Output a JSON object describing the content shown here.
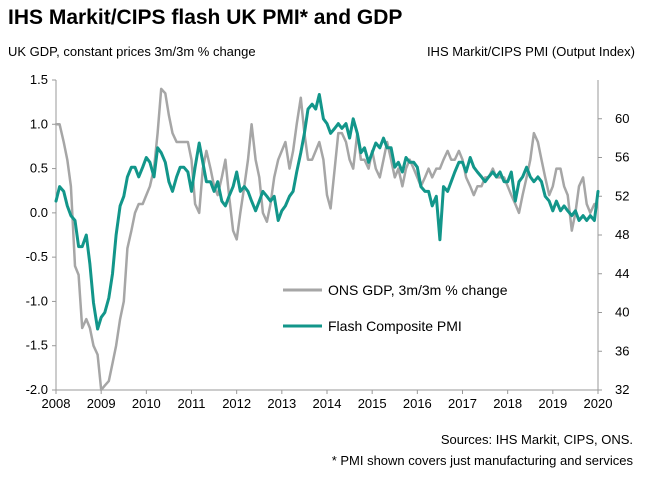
{
  "chart_data": {
    "type": "line",
    "title": "IHS Markit/CIPS flash UK PMI* and GDP",
    "ylabel_left": "UK GDP, constant prices 3m/3m % change",
    "ylabel_right": "IHS Markit/CIPS PMI (Output Index)",
    "xlim": [
      2008,
      2020
    ],
    "ylim_left": [
      -2.0,
      1.5
    ],
    "ylim_right": [
      32,
      64
    ],
    "x_ticks": [
      "2008",
      "2009",
      "2010",
      "2011",
      "2012",
      "2013",
      "2014",
      "2015",
      "2016",
      "2017",
      "2018",
      "2019",
      "2020"
    ],
    "y_ticks_left": [
      "1.5",
      "1.0",
      "0.5",
      "0.0",
      "-0.5",
      "-1.0",
      "-1.5",
      "-2.0"
    ],
    "y_ticks_right": [
      "60",
      "56",
      "52",
      "48",
      "44",
      "40",
      "36",
      "32"
    ],
    "legend_position": "center-right",
    "grid": false,
    "series": [
      {
        "name": "ONS GDP, 3m/3m % change",
        "axis": "left",
        "color": "#a6a6a6",
        "points": [
          [
            2008.0,
            1.0
          ],
          [
            2008.08,
            1.0
          ],
          [
            2008.17,
            0.8
          ],
          [
            2008.25,
            0.6
          ],
          [
            2008.33,
            0.3
          ],
          [
            2008.42,
            -0.6
          ],
          [
            2008.5,
            -0.7
          ],
          [
            2008.58,
            -1.3
          ],
          [
            2008.67,
            -1.2
          ],
          [
            2008.75,
            -1.3
          ],
          [
            2008.83,
            -1.5
          ],
          [
            2008.92,
            -1.6
          ],
          [
            2009.0,
            -2.0
          ],
          [
            2009.08,
            -1.95
          ],
          [
            2009.17,
            -1.9
          ],
          [
            2009.25,
            -1.7
          ],
          [
            2009.33,
            -1.5
          ],
          [
            2009.42,
            -1.2
          ],
          [
            2009.5,
            -1.0
          ],
          [
            2009.58,
            -0.4
          ],
          [
            2009.67,
            -0.2
          ],
          [
            2009.75,
            0.0
          ],
          [
            2009.83,
            0.1
          ],
          [
            2009.92,
            0.1
          ],
          [
            2010.0,
            0.2
          ],
          [
            2010.08,
            0.3
          ],
          [
            2010.17,
            0.5
          ],
          [
            2010.25,
            0.9
          ],
          [
            2010.33,
            1.4
          ],
          [
            2010.42,
            1.35
          ],
          [
            2010.5,
            1.1
          ],
          [
            2010.58,
            0.9
          ],
          [
            2010.67,
            0.8
          ],
          [
            2010.75,
            0.8
          ],
          [
            2010.83,
            0.8
          ],
          [
            2010.92,
            0.8
          ],
          [
            2011.0,
            0.6
          ],
          [
            2011.08,
            0.1
          ],
          [
            2011.17,
            0.0
          ],
          [
            2011.25,
            0.5
          ],
          [
            2011.33,
            0.7
          ],
          [
            2011.42,
            0.5
          ],
          [
            2011.5,
            0.3
          ],
          [
            2011.58,
            0.2
          ],
          [
            2011.67,
            0.4
          ],
          [
            2011.75,
            0.6
          ],
          [
            2011.83,
            0.2
          ],
          [
            2011.92,
            -0.2
          ],
          [
            2012.0,
            -0.3
          ],
          [
            2012.08,
            0.0
          ],
          [
            2012.17,
            0.3
          ],
          [
            2012.25,
            0.6
          ],
          [
            2012.33,
            1.0
          ],
          [
            2012.42,
            0.6
          ],
          [
            2012.5,
            0.4
          ],
          [
            2012.58,
            0.0
          ],
          [
            2012.67,
            -0.1
          ],
          [
            2012.75,
            0.1
          ],
          [
            2012.83,
            0.4
          ],
          [
            2012.92,
            0.6
          ],
          [
            2013.0,
            0.7
          ],
          [
            2013.08,
            0.8
          ],
          [
            2013.17,
            0.5
          ],
          [
            2013.25,
            0.7
          ],
          [
            2013.33,
            1.0
          ],
          [
            2013.42,
            1.3
          ],
          [
            2013.5,
            0.9
          ],
          [
            2013.58,
            0.6
          ],
          [
            2013.67,
            0.6
          ],
          [
            2013.75,
            0.7
          ],
          [
            2013.83,
            0.8
          ],
          [
            2013.92,
            0.6
          ],
          [
            2014.0,
            0.2
          ],
          [
            2014.08,
            0.05
          ],
          [
            2014.17,
            0.5
          ],
          [
            2014.25,
            0.9
          ],
          [
            2014.33,
            0.9
          ],
          [
            2014.42,
            0.8
          ],
          [
            2014.5,
            0.6
          ],
          [
            2014.58,
            0.5
          ],
          [
            2014.67,
            0.9
          ],
          [
            2014.75,
            0.6
          ],
          [
            2014.83,
            0.6
          ],
          [
            2014.92,
            0.5
          ],
          [
            2015.0,
            0.7
          ],
          [
            2015.08,
            0.5
          ],
          [
            2015.17,
            0.4
          ],
          [
            2015.25,
            0.6
          ],
          [
            2015.33,
            0.8
          ],
          [
            2015.42,
            0.6
          ],
          [
            2015.5,
            0.4
          ],
          [
            2015.58,
            0.5
          ],
          [
            2015.67,
            0.3
          ],
          [
            2015.75,
            0.5
          ],
          [
            2015.83,
            0.6
          ],
          [
            2015.92,
            0.5
          ],
          [
            2016.0,
            0.4
          ],
          [
            2016.08,
            0.3
          ],
          [
            2016.17,
            0.4
          ],
          [
            2016.25,
            0.5
          ],
          [
            2016.33,
            0.4
          ],
          [
            2016.42,
            0.5
          ],
          [
            2016.5,
            0.5
          ],
          [
            2016.58,
            0.6
          ],
          [
            2016.67,
            0.7
          ],
          [
            2016.75,
            0.6
          ],
          [
            2016.83,
            0.6
          ],
          [
            2016.92,
            0.7
          ],
          [
            2017.0,
            0.6
          ],
          [
            2017.08,
            0.4
          ],
          [
            2017.17,
            0.3
          ],
          [
            2017.25,
            0.2
          ],
          [
            2017.33,
            0.3
          ],
          [
            2017.42,
            0.3
          ],
          [
            2017.5,
            0.4
          ],
          [
            2017.58,
            0.4
          ],
          [
            2017.67,
            0.5
          ],
          [
            2017.75,
            0.4
          ],
          [
            2017.83,
            0.4
          ],
          [
            2017.92,
            0.4
          ],
          [
            2018.0,
            0.3
          ],
          [
            2018.08,
            0.2
          ],
          [
            2018.17,
            0.1
          ],
          [
            2018.25,
            0.0
          ],
          [
            2018.33,
            0.2
          ],
          [
            2018.42,
            0.4
          ],
          [
            2018.5,
            0.6
          ],
          [
            2018.58,
            0.9
          ],
          [
            2018.67,
            0.8
          ],
          [
            2018.75,
            0.6
          ],
          [
            2018.83,
            0.4
          ],
          [
            2018.92,
            0.2
          ],
          [
            2019.0,
            0.3
          ],
          [
            2019.08,
            0.5
          ],
          [
            2019.17,
            0.5
          ],
          [
            2019.25,
            0.3
          ],
          [
            2019.33,
            0.2
          ],
          [
            2019.42,
            -0.2
          ],
          [
            2019.5,
            0.0
          ],
          [
            2019.58,
            0.3
          ],
          [
            2019.67,
            0.4
          ],
          [
            2019.75,
            0.1
          ],
          [
            2019.83,
            0.0
          ],
          [
            2019.92,
            0.1
          ]
        ]
      },
      {
        "name": "Flash Composite PMI",
        "axis": "right",
        "color": "#12968a",
        "points": [
          [
            2008.0,
            51.5
          ],
          [
            2008.08,
            53.0
          ],
          [
            2008.17,
            52.5
          ],
          [
            2008.25,
            51.0
          ],
          [
            2008.33,
            50.0
          ],
          [
            2008.42,
            49.5
          ],
          [
            2008.5,
            46.8
          ],
          [
            2008.58,
            46.8
          ],
          [
            2008.67,
            48.0
          ],
          [
            2008.75,
            45.0
          ],
          [
            2008.83,
            41.0
          ],
          [
            2008.92,
            38.3
          ],
          [
            2009.0,
            39.5
          ],
          [
            2009.08,
            40.0
          ],
          [
            2009.17,
            41.5
          ],
          [
            2009.25,
            44.0
          ],
          [
            2009.33,
            48.0
          ],
          [
            2009.42,
            51.0
          ],
          [
            2009.5,
            52.0
          ],
          [
            2009.58,
            54.0
          ],
          [
            2009.67,
            55.0
          ],
          [
            2009.75,
            55.0
          ],
          [
            2009.83,
            54.0
          ],
          [
            2009.92,
            55.0
          ],
          [
            2010.0,
            56.0
          ],
          [
            2010.08,
            55.5
          ],
          [
            2010.17,
            54.0
          ],
          [
            2010.25,
            57.0
          ],
          [
            2010.33,
            56.5
          ],
          [
            2010.42,
            55.5
          ],
          [
            2010.5,
            53.5
          ],
          [
            2010.58,
            52.5
          ],
          [
            2010.67,
            54.0
          ],
          [
            2010.75,
            55.0
          ],
          [
            2010.83,
            55.0
          ],
          [
            2010.92,
            54.5
          ],
          [
            2011.0,
            52.5
          ],
          [
            2011.08,
            55.0
          ],
          [
            2011.17,
            57.5
          ],
          [
            2011.25,
            55.5
          ],
          [
            2011.33,
            53.5
          ],
          [
            2011.42,
            53.5
          ],
          [
            2011.5,
            52.5
          ],
          [
            2011.58,
            53.5
          ],
          [
            2011.67,
            51.5
          ],
          [
            2011.75,
            51.0
          ],
          [
            2011.83,
            52.0
          ],
          [
            2011.92,
            53.0
          ],
          [
            2012.0,
            54.5
          ],
          [
            2012.08,
            52.5
          ],
          [
            2012.17,
            53.0
          ],
          [
            2012.25,
            52.5
          ],
          [
            2012.33,
            51.5
          ],
          [
            2012.42,
            50.5
          ],
          [
            2012.5,
            51.5
          ],
          [
            2012.58,
            52.5
          ],
          [
            2012.67,
            52.0
          ],
          [
            2012.75,
            51.5
          ],
          [
            2012.83,
            52.0
          ],
          [
            2012.92,
            49.5
          ],
          [
            2013.0,
            50.5
          ],
          [
            2013.08,
            51.0
          ],
          [
            2013.17,
            52.0
          ],
          [
            2013.25,
            52.5
          ],
          [
            2013.33,
            54.5
          ],
          [
            2013.42,
            56.5
          ],
          [
            2013.5,
            58.5
          ],
          [
            2013.58,
            61.0
          ],
          [
            2013.67,
            61.5
          ],
          [
            2013.75,
            61.0
          ],
          [
            2013.83,
            62.5
          ],
          [
            2013.92,
            60.0
          ],
          [
            2014.0,
            59.5
          ],
          [
            2014.08,
            58.5
          ],
          [
            2014.17,
            59.0
          ],
          [
            2014.25,
            59.5
          ],
          [
            2014.33,
            59.0
          ],
          [
            2014.42,
            59.5
          ],
          [
            2014.5,
            58.0
          ],
          [
            2014.58,
            60.0
          ],
          [
            2014.67,
            58.5
          ],
          [
            2014.75,
            56.5
          ],
          [
            2014.83,
            57.0
          ],
          [
            2014.92,
            55.5
          ],
          [
            2015.0,
            56.5
          ],
          [
            2015.08,
            57.5
          ],
          [
            2015.17,
            57.0
          ],
          [
            2015.25,
            58.0
          ],
          [
            2015.33,
            57.0
          ],
          [
            2015.42,
            57.0
          ],
          [
            2015.5,
            55.0
          ],
          [
            2015.58,
            55.5
          ],
          [
            2015.67,
            54.5
          ],
          [
            2015.75,
            56.0
          ],
          [
            2015.83,
            55.5
          ],
          [
            2015.92,
            55.5
          ],
          [
            2016.0,
            55.0
          ],
          [
            2016.08,
            53.0
          ],
          [
            2016.17,
            52.5
          ],
          [
            2016.25,
            52.5
          ],
          [
            2016.33,
            51.0
          ],
          [
            2016.42,
            52.0
          ],
          [
            2016.5,
            47.5
          ],
          [
            2016.58,
            53.0
          ],
          [
            2016.67,
            52.5
          ],
          [
            2016.75,
            53.5
          ],
          [
            2016.83,
            54.5
          ],
          [
            2016.92,
            55.5
          ],
          [
            2017.0,
            55.5
          ],
          [
            2017.08,
            54.5
          ],
          [
            2017.17,
            56.0
          ],
          [
            2017.25,
            55.0
          ],
          [
            2017.33,
            54.5
          ],
          [
            2017.42,
            54.0
          ],
          [
            2017.5,
            53.5
          ],
          [
            2017.58,
            54.0
          ],
          [
            2017.67,
            54.5
          ],
          [
            2017.75,
            54.0
          ],
          [
            2017.83,
            54.5
          ],
          [
            2017.92,
            53.5
          ],
          [
            2018.0,
            53.5
          ],
          [
            2018.08,
            54.5
          ],
          [
            2018.17,
            51.5
          ],
          [
            2018.25,
            53.5
          ],
          [
            2018.33,
            54.0
          ],
          [
            2018.42,
            55.0
          ],
          [
            2018.5,
            54.0
          ],
          [
            2018.58,
            53.5
          ],
          [
            2018.67,
            54.0
          ],
          [
            2018.75,
            53.5
          ],
          [
            2018.83,
            52.0
          ],
          [
            2018.92,
            51.5
          ],
          [
            2019.0,
            50.5
          ],
          [
            2019.08,
            51.5
          ],
          [
            2019.17,
            50.5
          ],
          [
            2019.25,
            51.0
          ],
          [
            2019.33,
            50.5
          ],
          [
            2019.42,
            50.0
          ],
          [
            2019.5,
            50.5
          ],
          [
            2019.58,
            49.5
          ],
          [
            2019.67,
            50.0
          ],
          [
            2019.75,
            49.5
          ],
          [
            2019.83,
            50.0
          ],
          [
            2019.92,
            49.5
          ],
          [
            2020.0,
            52.5
          ]
        ]
      }
    ]
  },
  "notes": {
    "source": "Sources: IHS Markit, CIPS, ONS.",
    "pmi_note": "* PMI shown covers just manufacturing and services"
  }
}
